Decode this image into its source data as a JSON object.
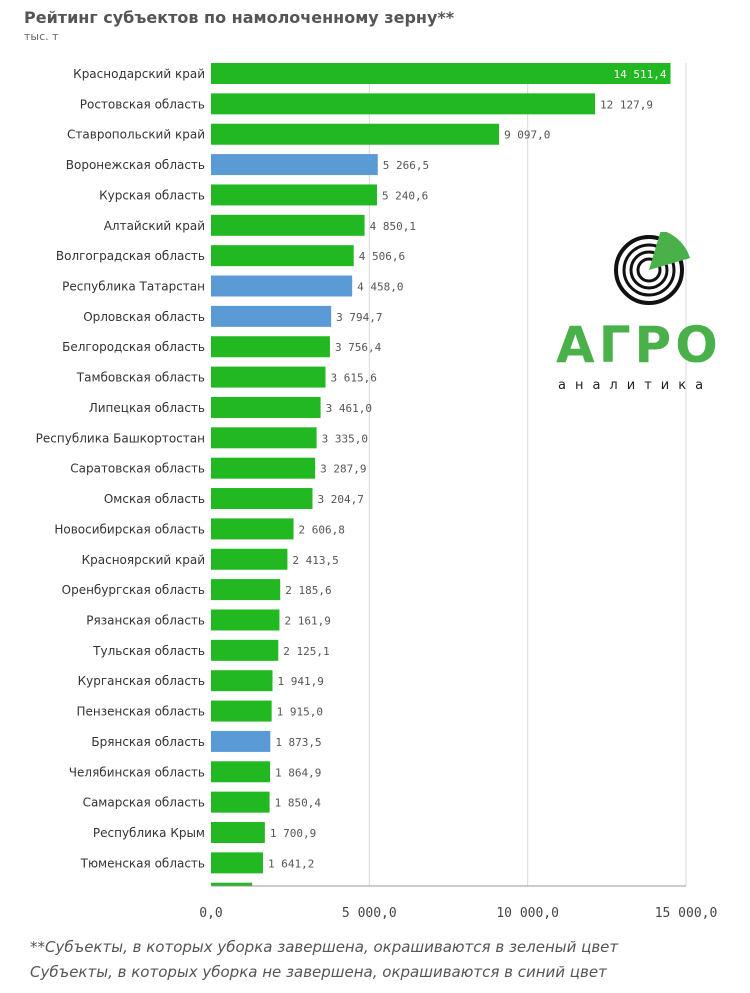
{
  "chart_data": {
    "type": "bar",
    "orientation": "horizontal",
    "title": "Рейтинг субъектов по намолоченному зерну**",
    "unit": "тыс. т",
    "categories": [
      "Краснодарский край",
      "Ростовская область",
      "Ставропольский край",
      "Воронежская область",
      "Курская область",
      "Алтайский край",
      "Волгоградская область",
      "Республика Татарстан",
      "Орловская область",
      "Белгородская область",
      "Тамбовская область",
      "Липецкая область",
      "Республика Башкортостан",
      "Саратовская область",
      "Омская область",
      "Новосибирская область",
      "Красноярский край",
      "Оренбургская область",
      "Рязанская область",
      "Тульская область",
      "Курганская область",
      "Пензенская область",
      "Брянская область",
      "Челябинская область",
      "Самарская область",
      "Республика Крым",
      "Тюменская область"
    ],
    "values": [
      14511.4,
      12127.9,
      9097.0,
      5266.5,
      5240.6,
      4850.1,
      4506.6,
      4458.0,
      3794.7,
      3756.4,
      3615.6,
      3461.0,
      3335.0,
      3287.9,
      3204.7,
      2606.8,
      2413.5,
      2185.6,
      2161.9,
      2125.1,
      1941.9,
      1915.0,
      1873.5,
      1864.9,
      1850.4,
      1700.9,
      1641.2
    ],
    "value_labels": [
      "14 511,4",
      "12 127,9",
      "9 097,0",
      "5 266,5",
      "5 240,6",
      "4 850,1",
      "4 506,6",
      "4 458,0",
      "3 794,7",
      "3 756,4",
      "3 615,6",
      "3 461,0",
      "3 335,0",
      "3 287,9",
      "3 204,7",
      "2 606,8",
      "2 413,5",
      "2 185,6",
      "2 161,9",
      "2 125,1",
      "1 941,9",
      "1 915,0",
      "1 873,5",
      "1 864,9",
      "1 850,4",
      "1 700,9",
      "1 641,2"
    ],
    "status": [
      "done",
      "done",
      "done",
      "not_done",
      "done",
      "done",
      "done",
      "not_done",
      "not_done",
      "done",
      "done",
      "done",
      "done",
      "done",
      "done",
      "done",
      "done",
      "done",
      "done",
      "done",
      "done",
      "done",
      "not_done",
      "done",
      "done",
      "done",
      "done"
    ],
    "partial_next_value": 1300,
    "xlim": [
      0,
      15000
    ],
    "xticks": [
      0,
      5000,
      10000,
      15000
    ],
    "xtick_labels": [
      "0,0",
      "5 000,0",
      "10 000,0",
      "15 000,0"
    ],
    "colors": {
      "done": "#22b822",
      "not_done": "#5b9bd5"
    }
  },
  "footnotes": [
    "**Субъекты, в которых уборка завершена, окрашиваются в зеленый цвет",
    "Субъекты, в которых уборка не завершена, окрашиваются в синий цвет"
  ],
  "logo": {
    "word": "АГРО",
    "sub": "аналитика",
    "color": "#4ab14a",
    "icon": "target-pie-icon"
  }
}
